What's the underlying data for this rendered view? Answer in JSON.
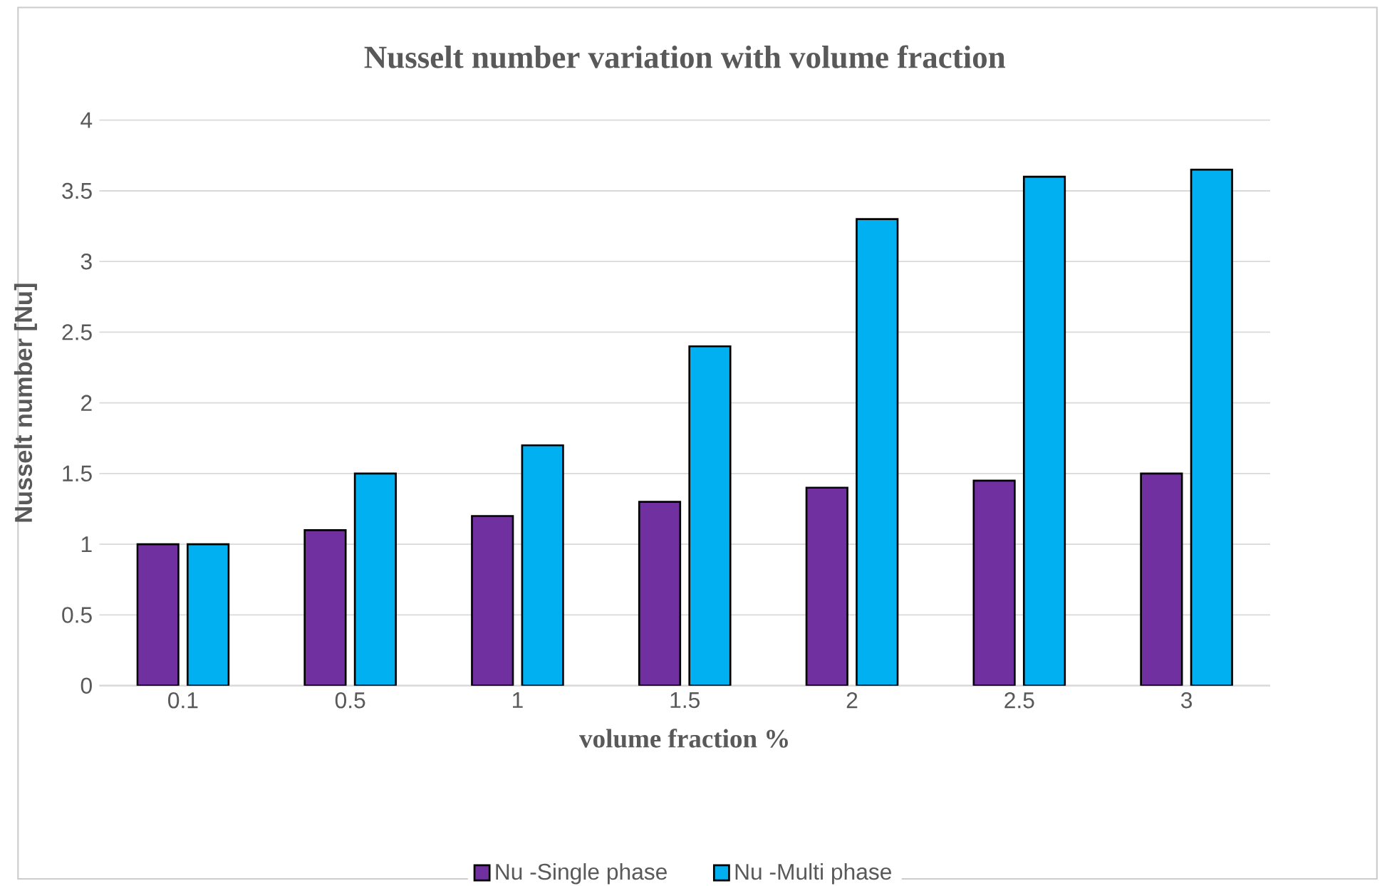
{
  "chart_data": {
    "type": "bar",
    "title": "Nusselt number variation with volume fraction",
    "xlabel": "volume fraction %",
    "ylabel": "Nusselt number [Nu]",
    "categories": [
      "0.1",
      "0.5",
      "1",
      "1.5",
      "2",
      "2.5",
      "3"
    ],
    "series": [
      {
        "name": "Nu -Single phase",
        "color": "#7030a0",
        "values": [
          1,
          1.1,
          1.2,
          1.3,
          1.4,
          1.45,
          1.5
        ]
      },
      {
        "name": "Nu -Multi  phase",
        "color": "#00b0f0",
        "values": [
          1,
          1.5,
          1.7,
          2.4,
          3.3,
          3.6,
          3.65
        ]
      }
    ],
    "ylim": [
      0,
      4
    ],
    "yticks": [
      0,
      0.5,
      1,
      1.5,
      2,
      2.5,
      3,
      3.5,
      4
    ],
    "grid": "y",
    "legend": "bottom"
  }
}
